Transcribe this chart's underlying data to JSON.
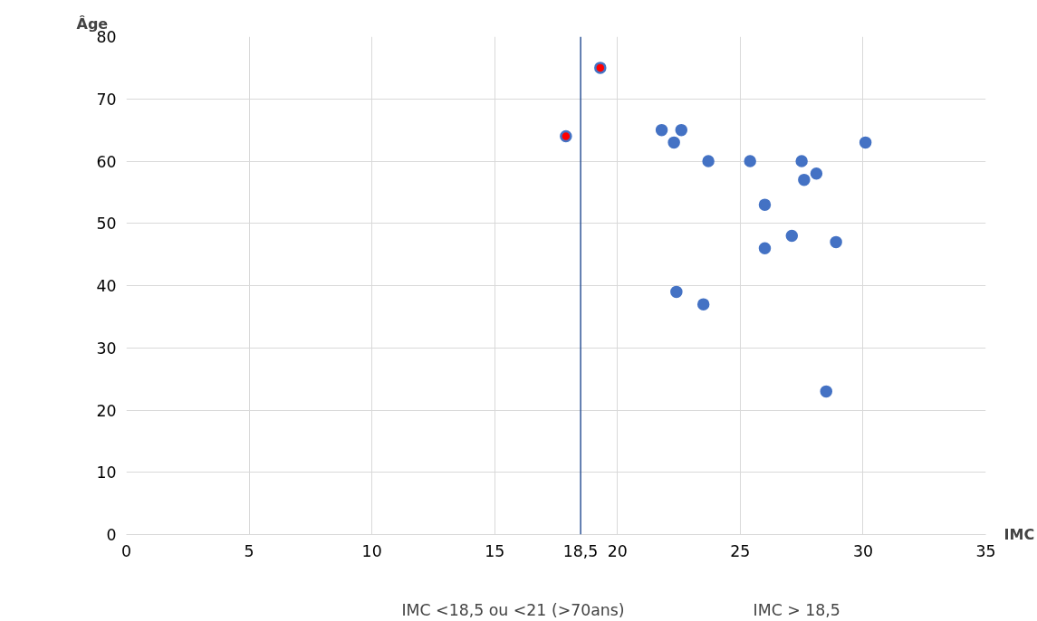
{
  "chart_data": {
    "type": "scatter",
    "xlabel": "IMC",
    "ylabel": "Âge",
    "xlim": [
      0,
      35
    ],
    "xticks": [
      0,
      5,
      10,
      15,
      20,
      25,
      30,
      35
    ],
    "ylim": [
      0,
      80
    ],
    "yticks": [
      0,
      10,
      20,
      30,
      40,
      50,
      60,
      70,
      80
    ],
    "grid": true,
    "marker": "circle",
    "series": [
      {
        "color": "#4472c4",
        "x": [
          17.9,
          19.3,
          21.8,
          22.3,
          22.6,
          23.7,
          22.4,
          23.5,
          25.4,
          26.0,
          26.0,
          27.1,
          27.5,
          27.6,
          28.1,
          28.5,
          28.9,
          30.1
        ],
        "values": [
          64,
          75,
          65,
          63,
          65,
          60,
          39,
          37,
          60,
          53,
          46,
          48,
          60,
          57,
          58,
          23,
          47,
          63
        ],
        "colors": [
          "#ff0000",
          "#ff0000",
          "#4472c4",
          "#4472c4",
          "#4472c4",
          "#4472c4",
          "#4472c4",
          "#4472c4",
          "#4472c4",
          "#4472c4",
          "#4472c4",
          "#4472c4",
          "#4472c4",
          "#4472c4",
          "#4472c4",
          "#4472c4",
          "#4472c4",
          "#4472c4"
        ]
      }
    ],
    "ref_lines": [
      {
        "axis": "x",
        "value": 18.5,
        "label": "18,5",
        "color": "#2f5597"
      }
    ],
    "annotations": [
      "IMC <18,5 ou <21 (>70ans)",
      "IMC > 18,5"
    ]
  }
}
